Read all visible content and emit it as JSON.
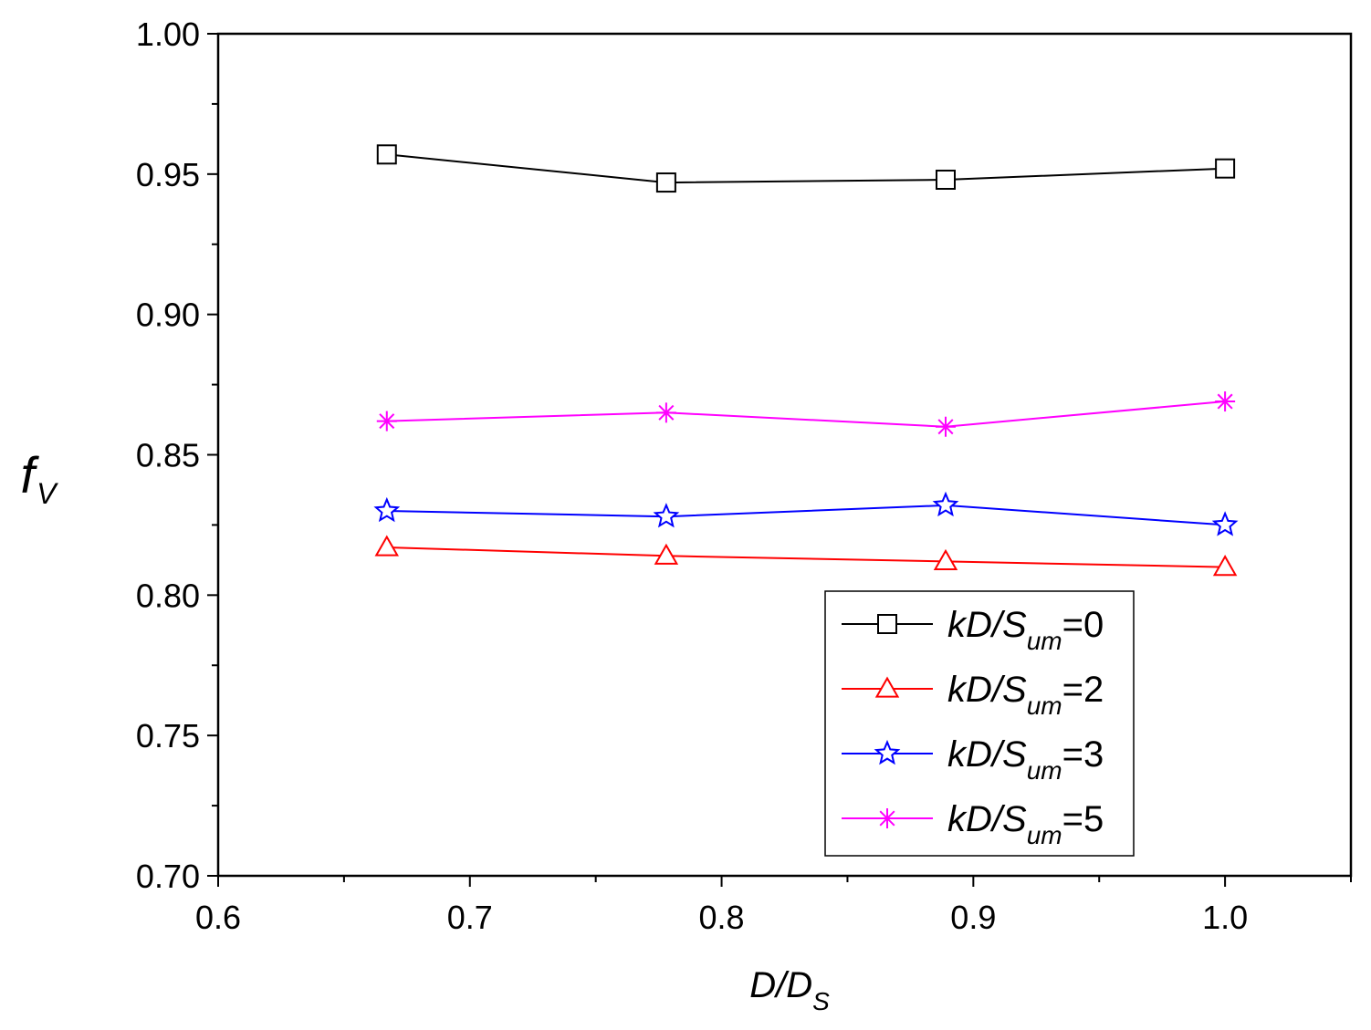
{
  "chart_data": {
    "type": "line",
    "title": "",
    "xlabel": {
      "main": "D/D",
      "sub": "S"
    },
    "ylabel": {
      "main": "f",
      "sub": "V"
    },
    "xlim": [
      0.6,
      1.05
    ],
    "ylim": [
      0.7,
      1.0
    ],
    "x_ticks": [
      "0.6",
      "0.7",
      "0.8",
      "0.9",
      "1.0"
    ],
    "y_ticks": [
      "0.70",
      "0.75",
      "0.80",
      "0.85",
      "0.90",
      "0.95",
      "1.00"
    ],
    "x": [
      0.667,
      0.778,
      0.889,
      1.0
    ],
    "series": [
      {
        "name": "kD/S_um=0",
        "label_main": "kD/S",
        "label_sub": "um",
        "label_suffix": "=0",
        "color": "#000000",
        "marker": "square",
        "values": [
          0.957,
          0.947,
          0.948,
          0.952
        ]
      },
      {
        "name": "kD/S_um=2",
        "label_main": "kD/S",
        "label_sub": "um",
        "label_suffix": "=2",
        "color": "#ff0000",
        "marker": "triangle",
        "values": [
          0.817,
          0.814,
          0.812,
          0.81
        ]
      },
      {
        "name": "kD/S_um=3",
        "label_main": "kD/S",
        "label_sub": "um",
        "label_suffix": "=3",
        "color": "#0000ff",
        "marker": "star",
        "values": [
          0.83,
          0.828,
          0.832,
          0.825
        ]
      },
      {
        "name": "kD/S_um=5",
        "label_main": "kD/S",
        "label_sub": "um",
        "label_suffix": "=5",
        "color": "#ff00ff",
        "marker": "asterisk",
        "values": [
          0.862,
          0.865,
          0.86,
          0.869
        ]
      }
    ],
    "grid": false,
    "legend_position": "bottom-right"
  }
}
